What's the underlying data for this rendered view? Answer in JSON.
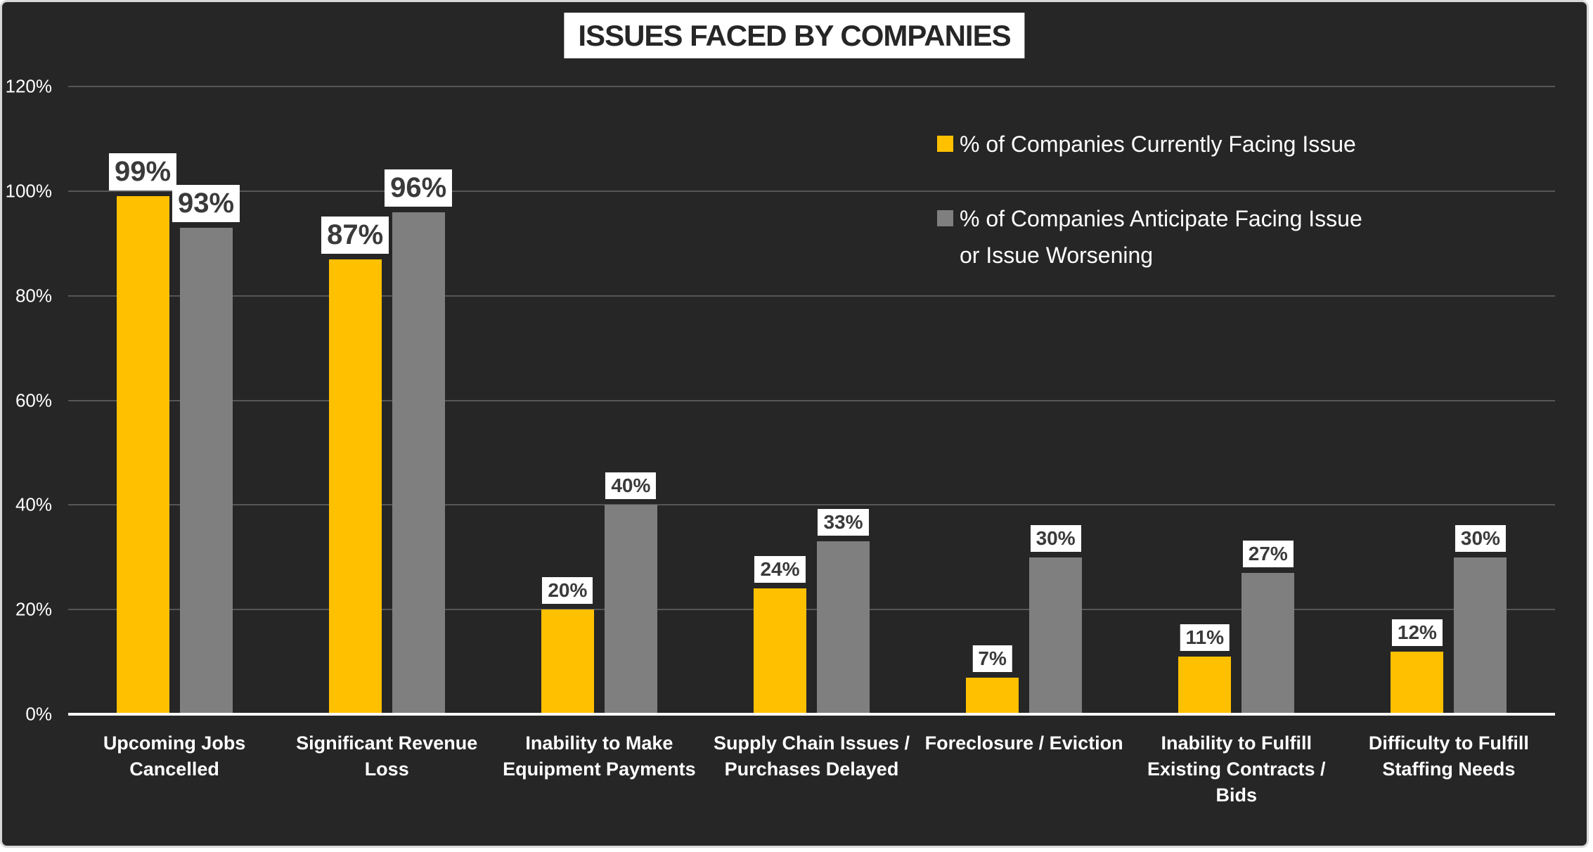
{
  "title": {
    "text": "ISSUES FACED BY COMPANIES"
  },
  "colors": {
    "background": "#262626",
    "frame_border": "#d8d8d8",
    "title_background": "#ffffff",
    "title_text": "#262626",
    "series_current": "#FFC000",
    "series_anticipate": "#7F7F7F",
    "gridline": "#565656",
    "axis_line": "#ffffff",
    "axis_text": "#ffffff",
    "data_label_background": "#ffffff",
    "data_label_text": "#3a3a3a"
  },
  "legend": {
    "items": [
      {
        "lines": [
          "% of Companies Currently Facing Issue"
        ],
        "color": "#FFC000"
      },
      {
        "lines": [
          "% of Companies Anticipate Facing Issue",
          "or Issue Worsening"
        ],
        "color": "#7F7F7F"
      }
    ]
  },
  "y_axis": {
    "tick_labels": [
      "0%",
      "20%",
      "40%",
      "60%",
      "80%",
      "100%",
      "120%"
    ]
  },
  "chart_data": {
    "type": "bar",
    "title": "ISSUES FACED BY COMPANIES",
    "categories": [
      "Upcoming Jobs Cancelled",
      "Significant Revenue Loss",
      "Inability to Make Equipment Payments",
      "Supply Chain Issues / Purchases Delayed",
      "Foreclosure / Eviction",
      "Inability to Fulfill Existing Contracts / Bids",
      "Difficulty to Fulfill Staffing Needs"
    ],
    "category_lines": [
      [
        "Upcoming Jobs",
        "Cancelled"
      ],
      [
        "Significant Revenue Loss"
      ],
      [
        "Inability to Make",
        "Equipment Payments"
      ],
      [
        "Supply Chain Issues /",
        "Purchases Delayed"
      ],
      [
        "Foreclosure / Eviction"
      ],
      [
        "Inability to Fulfill",
        "Existing Contracts / Bids"
      ],
      [
        "Difficulty to Fulfill",
        "Staffing Needs"
      ]
    ],
    "series": [
      {
        "name": "% of Companies Currently Facing Issue",
        "color": "#FFC000",
        "values": [
          99,
          87,
          20,
          24,
          7,
          11,
          12
        ]
      },
      {
        "name": "% of Companies Anticipate Facing Issue or Issue Worsening",
        "color": "#7F7F7F",
        "values": [
          93,
          96,
          40,
          33,
          30,
          27,
          30
        ]
      }
    ],
    "value_suffix": "%",
    "xlabel": "",
    "ylabel": "",
    "ylim": [
      0,
      120
    ],
    "ytick_interval": 20,
    "grid": true,
    "data_labels": true,
    "legend_position": "top-right",
    "emphasized_label_categories": [
      0,
      1
    ]
  }
}
